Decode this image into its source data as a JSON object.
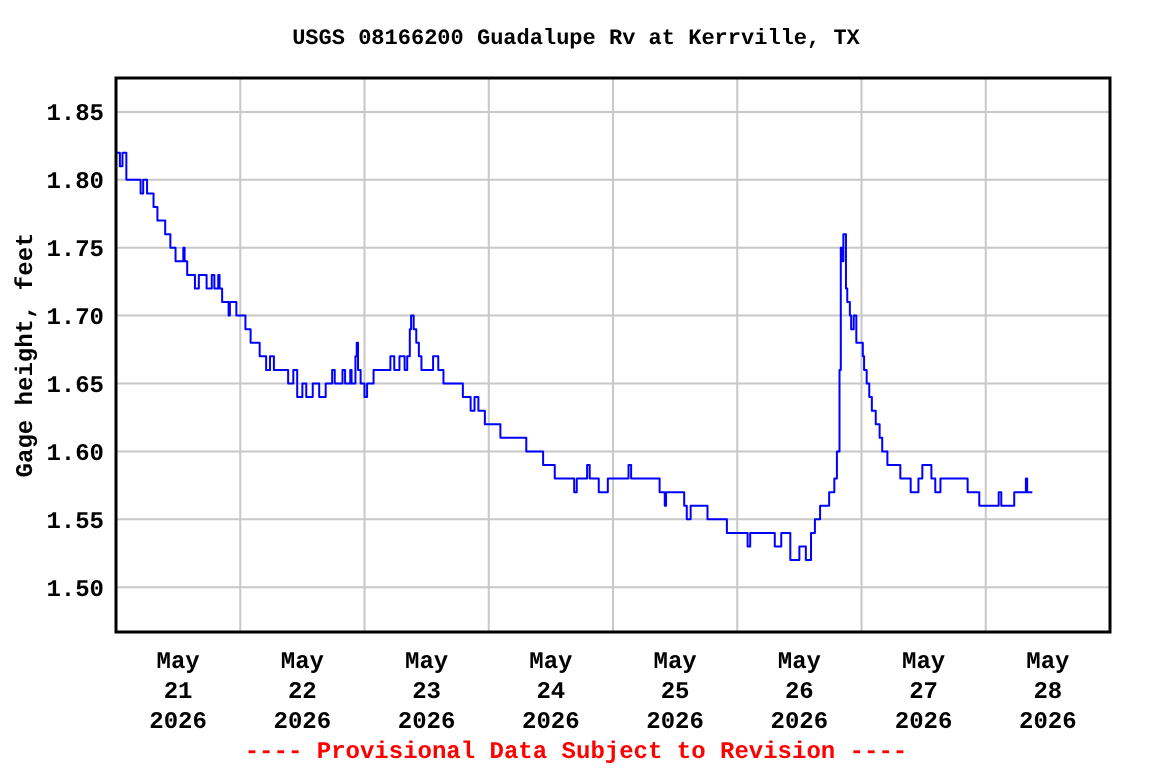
{
  "chart_data": {
    "type": "step",
    "title": "USGS 08166200 Guadalupe Rv at Kerrville, TX",
    "ylabel": "Gage height, feet",
    "annotations": [
      "---- Provisional Data Subject to Revision ----"
    ],
    "xlim": [
      "2026-05-21T00:00",
      "2026-05-29T00:00"
    ],
    "xticks": [
      {
        "value": "2026-05-21T12:00",
        "label": "May\n21\n2026"
      },
      {
        "value": "2026-05-22T12:00",
        "label": "May\n22\n2026"
      },
      {
        "value": "2026-05-23T12:00",
        "label": "May\n23\n2026"
      },
      {
        "value": "2026-05-24T12:00",
        "label": "May\n24\n2026"
      },
      {
        "value": "2026-05-25T12:00",
        "label": "May\n25\n2026"
      },
      {
        "value": "2026-05-26T12:00",
        "label": "May\n26\n2026"
      },
      {
        "value": "2026-05-27T12:00",
        "label": "May\n27\n2026"
      },
      {
        "value": "2026-05-28T12:00",
        "label": "May\n28\n2026"
      },
      {
        "value": "2026-05-22T00:00",
        "label": null
      },
      {
        "value": "2026-05-23T00:00",
        "label": null
      },
      {
        "value": "2026-05-24T00:00",
        "label": null
      },
      {
        "value": "2026-05-25T00:00",
        "label": null
      },
      {
        "value": "2026-05-26T00:00",
        "label": null
      },
      {
        "value": "2026-05-27T00:00",
        "label": null
      },
      {
        "value": "2026-05-28T00:00",
        "label": null
      }
    ],
    "ylim": [
      1.467,
      1.875
    ],
    "yticks": [
      {
        "value": 1.5,
        "label": "1.50"
      },
      {
        "value": 1.55,
        "label": "1.55"
      },
      {
        "value": 1.6,
        "label": "1.60"
      },
      {
        "value": 1.65,
        "label": "1.65"
      },
      {
        "value": 1.7,
        "label": "1.70"
      },
      {
        "value": 1.75,
        "label": "1.75"
      },
      {
        "value": 1.8,
        "label": "1.80"
      },
      {
        "value": 1.85,
        "label": "1.85"
      }
    ],
    "grid": true,
    "marker": "none",
    "x": [
      "2026-05-21T00:00",
      "2026-05-21T00:45",
      "2026-05-21T01:15",
      "2026-05-21T02:00",
      "2026-05-21T04:45",
      "2026-05-21T05:15",
      "2026-05-21T06:00",
      "2026-05-21T07:15",
      "2026-05-21T08:00",
      "2026-05-21T09:30",
      "2026-05-21T10:30",
      "2026-05-21T11:30",
      "2026-05-21T13:00",
      "2026-05-21T13:15",
      "2026-05-21T13:45",
      "2026-05-21T15:15",
      "2026-05-21T16:00",
      "2026-05-21T17:30",
      "2026-05-21T18:30",
      "2026-05-21T19:00",
      "2026-05-21T19:45",
      "2026-05-21T20:00",
      "2026-05-21T20:30",
      "2026-05-21T21:45",
      "2026-05-21T22:00",
      "2026-05-21T23:15",
      "2026-05-22T01:00",
      "2026-05-22T02:00",
      "2026-05-22T03:45",
      "2026-05-22T05:00",
      "2026-05-22T05:45",
      "2026-05-22T06:30",
      "2026-05-22T09:15",
      "2026-05-22T10:15",
      "2026-05-22T11:00",
      "2026-05-22T12:00",
      "2026-05-22T12:45",
      "2026-05-22T14:00",
      "2026-05-22T15:15",
      "2026-05-22T16:30",
      "2026-05-22T17:45",
      "2026-05-22T18:15",
      "2026-05-22T19:45",
      "2026-05-22T20:15",
      "2026-05-22T21:15",
      "2026-05-22T21:30",
      "2026-05-22T22:15",
      "2026-05-22T22:30",
      "2026-05-22T22:45",
      "2026-05-22T23:15",
      "2026-05-23T00:00",
      "2026-05-23T00:30",
      "2026-05-23T01:45",
      "2026-05-23T05:00",
      "2026-05-23T05:45",
      "2026-05-23T06:45",
      "2026-05-23T07:45",
      "2026-05-23T08:15",
      "2026-05-23T08:45",
      "2026-05-23T09:00",
      "2026-05-23T09:30",
      "2026-05-23T10:00",
      "2026-05-23T10:30",
      "2026-05-23T11:00",
      "2026-05-23T13:15",
      "2026-05-23T14:15",
      "2026-05-23T15:15",
      "2026-05-23T19:00",
      "2026-05-23T20:30",
      "2026-05-23T21:15",
      "2026-05-23T22:00",
      "2026-05-23T23:15",
      "2026-05-24T02:15",
      "2026-05-24T07:15",
      "2026-05-24T10:30",
      "2026-05-24T12:45",
      "2026-05-24T16:30",
      "2026-05-24T17:00",
      "2026-05-24T19:00",
      "2026-05-24T19:30",
      "2026-05-24T21:15",
      "2026-05-24T23:00",
      "2026-05-25T03:00",
      "2026-05-25T03:30",
      "2026-05-25T09:00",
      "2026-05-25T10:00",
      "2026-05-25T10:15",
      "2026-05-25T13:45",
      "2026-05-25T14:15",
      "2026-05-25T15:00",
      "2026-05-25T18:15",
      "2026-05-25T22:00",
      "2026-05-26T02:00",
      "2026-05-26T02:30",
      "2026-05-26T07:15",
      "2026-05-26T08:30",
      "2026-05-26T10:15",
      "2026-05-26T12:00",
      "2026-05-26T13:15",
      "2026-05-26T14:15",
      "2026-05-26T15:00",
      "2026-05-26T16:00",
      "2026-05-26T17:45",
      "2026-05-26T18:45",
      "2026-05-26T19:15",
      "2026-05-26T19:45",
      "2026-05-26T20:00",
      "2026-05-26T20:15",
      "2026-05-26T20:30",
      "2026-05-26T21:00",
      "2026-05-26T21:15",
      "2026-05-26T21:45",
      "2026-05-26T22:00",
      "2026-05-26T22:30",
      "2026-05-26T23:00",
      "2026-05-27T00:15",
      "2026-05-27T00:30",
      "2026-05-27T01:00",
      "2026-05-27T01:30",
      "2026-05-27T02:00",
      "2026-05-27T02:45",
      "2026-05-27T03:30",
      "2026-05-27T04:00",
      "2026-05-27T05:00",
      "2026-05-27T07:30",
      "2026-05-27T09:30",
      "2026-05-27T11:00",
      "2026-05-27T11:45",
      "2026-05-27T13:30",
      "2026-05-27T14:15",
      "2026-05-27T15:15",
      "2026-05-27T20:30",
      "2026-05-27T22:45",
      "2026-05-28T02:30",
      "2026-05-28T03:00",
      "2026-05-28T05:30",
      "2026-05-28T07:45",
      "2026-05-28T08:00",
      "2026-05-28T09:00"
    ],
    "series": [
      {
        "color": "#0000ff",
        "values": [
          1.82,
          1.81,
          1.82,
          1.8,
          1.79,
          1.8,
          1.79,
          1.78,
          1.77,
          1.76,
          1.75,
          1.74,
          1.75,
          1.74,
          1.73,
          1.72,
          1.73,
          1.72,
          1.73,
          1.72,
          1.73,
          1.72,
          1.71,
          1.7,
          1.71,
          1.7,
          1.69,
          1.68,
          1.67,
          1.66,
          1.67,
          1.66,
          1.65,
          1.66,
          1.64,
          1.65,
          1.64,
          1.65,
          1.64,
          1.65,
          1.66,
          1.65,
          1.66,
          1.65,
          1.66,
          1.65,
          1.67,
          1.68,
          1.66,
          1.65,
          1.64,
          1.65,
          1.66,
          1.67,
          1.66,
          1.67,
          1.66,
          1.67,
          1.69,
          1.7,
          1.69,
          1.68,
          1.67,
          1.66,
          1.67,
          1.66,
          1.65,
          1.64,
          1.63,
          1.64,
          1.63,
          1.62,
          1.61,
          1.6,
          1.59,
          1.58,
          1.57,
          1.58,
          1.59,
          1.58,
          1.57,
          1.58,
          1.59,
          1.58,
          1.57,
          1.56,
          1.57,
          1.56,
          1.55,
          1.56,
          1.55,
          1.54,
          1.53,
          1.54,
          1.53,
          1.54,
          1.52,
          1.53,
          1.52,
          1.54,
          1.55,
          1.56,
          1.57,
          1.58,
          1.6,
          1.66,
          1.75,
          1.74,
          1.76,
          1.72,
          1.71,
          1.7,
          1.69,
          1.7,
          1.68,
          1.67,
          1.66,
          1.65,
          1.64,
          1.63,
          1.62,
          1.61,
          1.6,
          1.59,
          1.58,
          1.57,
          1.58,
          1.59,
          1.58,
          1.57,
          1.58,
          1.57,
          1.56,
          1.57,
          1.56,
          1.57,
          1.58,
          1.57,
          1.57
        ]
      }
    ]
  }
}
